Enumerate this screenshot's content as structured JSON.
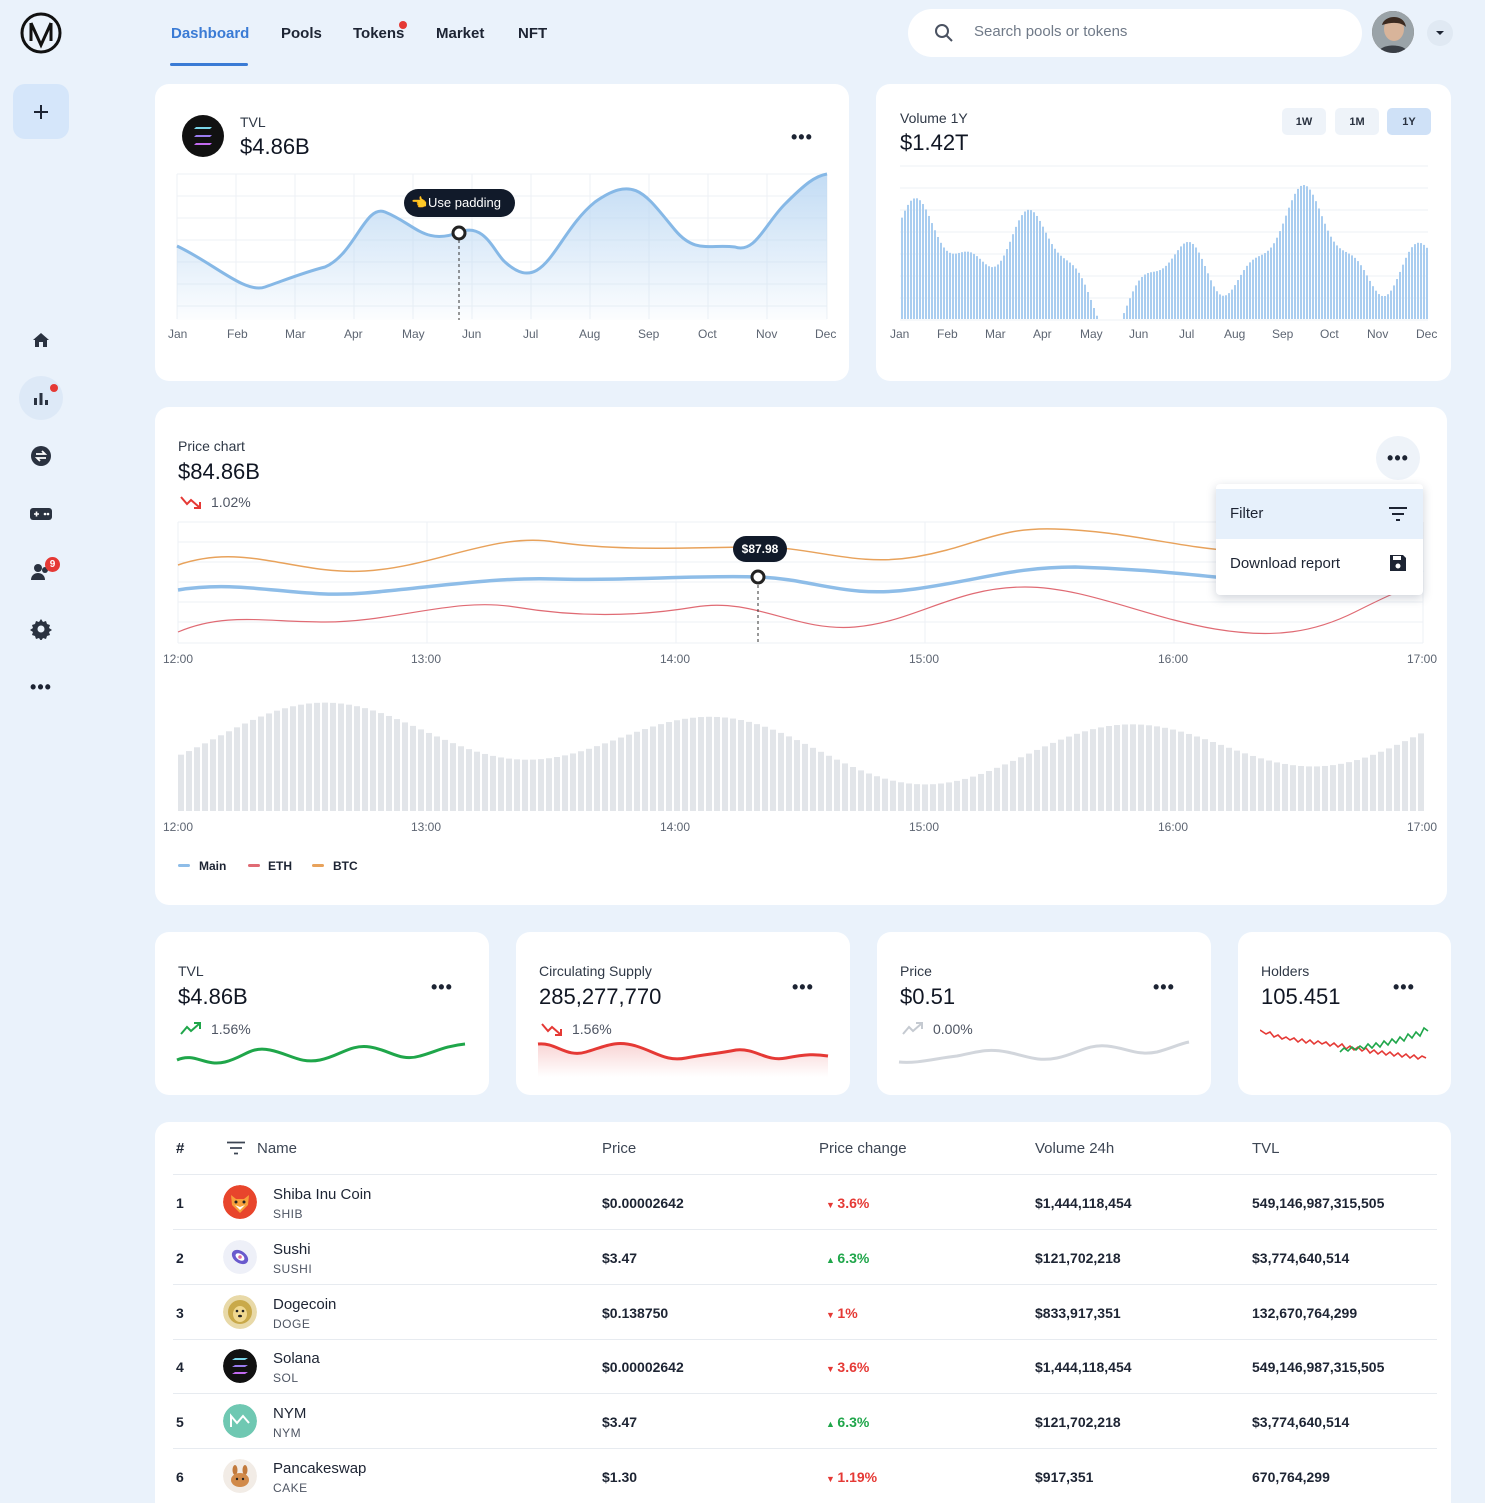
{
  "nav": {
    "tabs": [
      "Dashboard",
      "Pools",
      "Tokens",
      "Market",
      "NFT"
    ],
    "search_placeholder": "Search pools or tokens"
  },
  "colors": {
    "accent": "#3a7bd5",
    "up": "#1fa64a",
    "down": "#e53935",
    "eth": "#e06b74",
    "btc": "#e8a25b",
    "main": "#8ebde8"
  },
  "sidebar": {
    "icons": [
      "home-icon",
      "chart-icon",
      "swap-icon",
      "ticket-icon",
      "users-icon",
      "gear-icon",
      "more-icon"
    ],
    "users_badge": "9"
  },
  "tvl_card": {
    "label": "TVL",
    "value": "$4.86B",
    "tooltip": "Use padding",
    "months": [
      "Jan",
      "Feb",
      "Mar",
      "Apr",
      "May",
      "Jun",
      "Jul",
      "Aug",
      "Sep",
      "Oct",
      "Nov",
      "Dec"
    ]
  },
  "volume_card": {
    "label": "Volume 1Y",
    "value": "$1.42T",
    "timeframes": [
      "1W",
      "1M",
      "1Y"
    ],
    "selected": "1Y",
    "months": [
      "Jan",
      "Feb",
      "Mar",
      "Apr",
      "May",
      "Jun",
      "Jul",
      "Aug",
      "Sep",
      "Oct",
      "Nov",
      "Dec"
    ]
  },
  "price_card": {
    "label": "Price chart",
    "value": "$84.86B",
    "change": "1.02%",
    "tooltip": "$87.98",
    "times": [
      "12:00",
      "13:00",
      "14:00",
      "15:00",
      "16:00",
      "17:00"
    ],
    "legend": [
      "Main",
      "ETH",
      "BTC"
    ],
    "menu": {
      "filter": "Filter",
      "download": "Download report"
    }
  },
  "stats": [
    {
      "label": "TVL",
      "value": "$4.86B",
      "change": "1.56%",
      "trend": "up"
    },
    {
      "label": "Circulating Supply",
      "value": "285,277,770",
      "change": "1.56%",
      "trend": "down"
    },
    {
      "label": "Price",
      "value": "$0.51",
      "change": "0.00%",
      "trend": "flat"
    },
    {
      "label": "Holders",
      "value": "105.451",
      "change": "",
      "trend": "mixed"
    }
  ],
  "table": {
    "headers": [
      "#",
      "Name",
      "Price",
      "Price change",
      "Volume 24h",
      "TVL"
    ],
    "rows": [
      {
        "n": "1",
        "name": "Shiba Inu Coin",
        "symbol": "SHIB",
        "price": "$0.00002642",
        "change": "3.6%",
        "dir": "down",
        "volume": "$1,444,118,454",
        "tvl": "549,146,987,315,505"
      },
      {
        "n": "2",
        "name": "Sushi",
        "symbol": "SUSHI",
        "price": "$3.47",
        "change": "6.3%",
        "dir": "up",
        "volume": "$121,702,218",
        "tvl": "$3,774,640,514"
      },
      {
        "n": "3",
        "name": "Dogecoin",
        "symbol": "DOGE",
        "price": "$0.138750",
        "change": "1%",
        "dir": "down",
        "volume": "$833,917,351",
        "tvl": "132,670,764,299"
      },
      {
        "n": "4",
        "name": "Solana",
        "symbol": "SOL",
        "price": "$0.00002642",
        "change": "3.6%",
        "dir": "down",
        "volume": "$1,444,118,454",
        "tvl": "549,146,987,315,505"
      },
      {
        "n": "5",
        "name": "NYM",
        "symbol": "NYM",
        "price": "$3.47",
        "change": "6.3%",
        "dir": "up",
        "volume": "$121,702,218",
        "tvl": "$3,774,640,514"
      },
      {
        "n": "6",
        "name": "Pancakeswap",
        "symbol": "CAKE",
        "price": "$1.30",
        "change": "1.19%",
        "dir": "down",
        "volume": "$917,351",
        "tvl": "670,764,299"
      }
    ]
  }
}
